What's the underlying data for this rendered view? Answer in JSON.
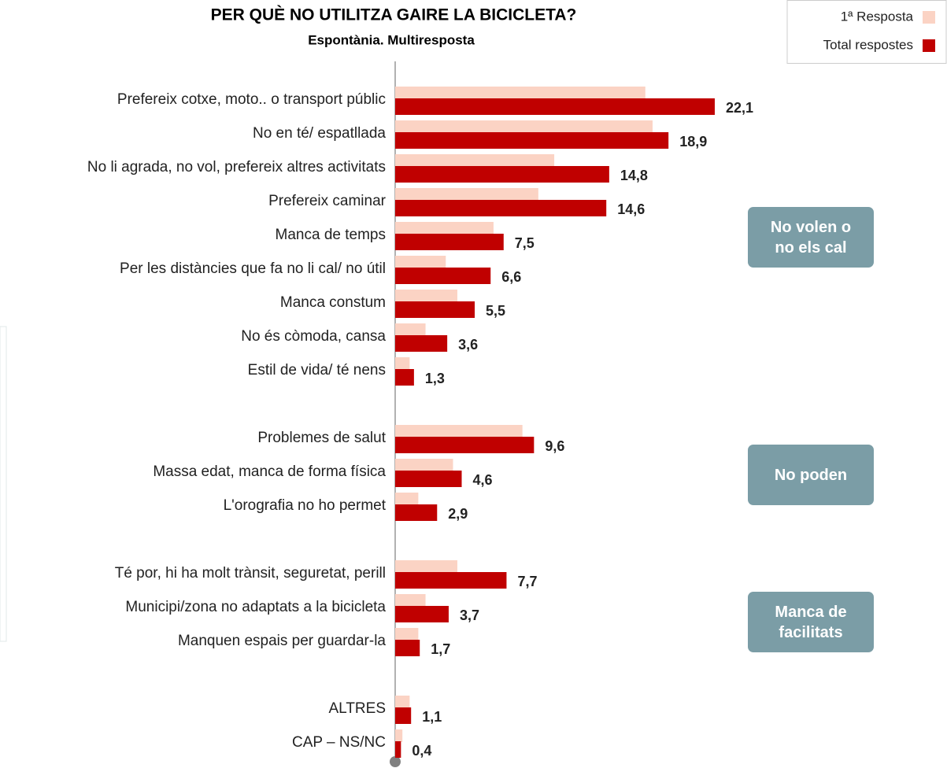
{
  "chart_data": {
    "type": "hbar",
    "title": "PER QUÈ NO UTILITZA GAIRE LA BICICLETA?",
    "subtitle": "Espontània. Multiresposta",
    "categories": [
      "Prefereix cotxe, moto.. o transport públic",
      "No en té/ espatllada",
      "No li agrada, no vol, prefereix altres activitats",
      "Prefereix caminar",
      "Manca de temps",
      "Per les distàncies que fa no li cal/ no útil",
      "Manca constum",
      "No és còmoda, cansa",
      "Estil de vida/ té nens",
      null,
      "Problemes de salut",
      "Massa edat, manca de forma física",
      "L'orografia no ho permet",
      null,
      "Té por, hi ha molt trànsit, seguretat, perill",
      "Municipi/zona no adaptats a la bicicleta",
      "Manquen espais per guardar-la",
      null,
      "ALTRES",
      "CAP – NS/NC"
    ],
    "series": [
      {
        "name": "1ª Resposta",
        "color": "#fbd3c4",
        "values": [
          17.3,
          17.8,
          11.0,
          9.9,
          6.8,
          3.5,
          4.3,
          2.1,
          1.0,
          null,
          8.8,
          4.0,
          1.6,
          null,
          4.3,
          2.1,
          1.6,
          null,
          1.0,
          0.5
        ]
      },
      {
        "name": "Total respostes",
        "color": "#c00000",
        "values": [
          22.1,
          18.9,
          14.8,
          14.6,
          7.5,
          6.6,
          5.5,
          3.6,
          1.3,
          null,
          9.6,
          4.6,
          2.9,
          null,
          7.7,
          3.7,
          1.7,
          null,
          1.1,
          0.4
        ],
        "value_labels": [
          "22,1",
          "18,9",
          "14,8",
          "14,6",
          "7,5",
          "6,6",
          "5,5",
          "3,6",
          "1,3",
          null,
          "9,6",
          "4,6",
          "2,9",
          null,
          "7,7",
          "3,7",
          "1,7",
          null,
          "1,1",
          "0,4"
        ]
      }
    ],
    "annotations": [
      "No volen o no els cal",
      "No poden",
      "Manca de facilitats"
    ],
    "legend": "top-right"
  }
}
